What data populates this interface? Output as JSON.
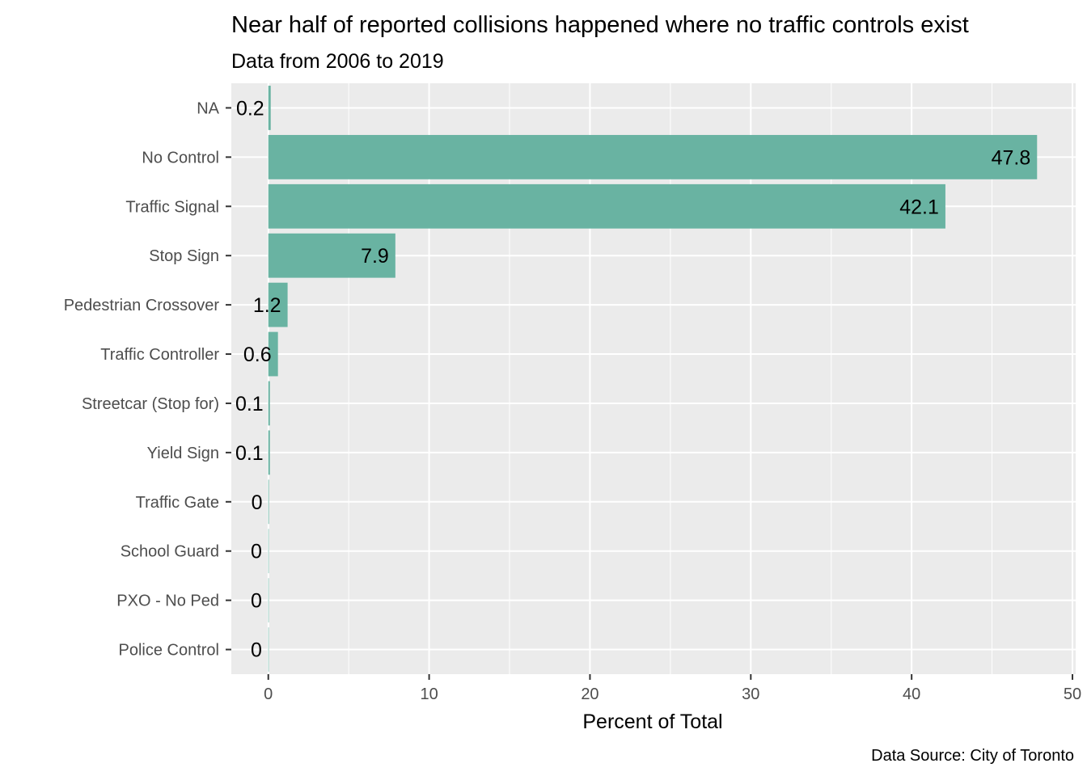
{
  "chart_data": {
    "type": "bar",
    "orientation": "horizontal",
    "title": "Near half of reported collisions happened where no traffic controls exist",
    "subtitle": "Data from 2006 to 2019",
    "caption": "Data Source: City of Toronto",
    "xlabel": "Percent of Total",
    "ylabel": "",
    "categories": [
      "NA",
      "No Control",
      "Traffic Signal",
      "Stop Sign",
      "Pedestrian Crossover",
      "Traffic Controller",
      "Streetcar (Stop for)",
      "Yield Sign",
      "Traffic Gate",
      "School Guard",
      "PXO - No Ped",
      "Police Control"
    ],
    "values": [
      0.15,
      47.8,
      42.1,
      7.9,
      1.2,
      0.6,
      0.1,
      0.1,
      0.04,
      0.01,
      0.01,
      0.01
    ],
    "labels": [
      "0.2",
      "47.8",
      "42.1",
      "7.9",
      "1.2",
      "0.6",
      "0.1",
      "0.1",
      "0",
      "0",
      "0",
      "0"
    ],
    "xlim": [
      -2.3,
      50.2
    ],
    "xticks": [
      0,
      10,
      20,
      30,
      40,
      50
    ],
    "xtick_labels": [
      "0",
      "10",
      "20",
      "30",
      "40",
      "50"
    ],
    "grid": true,
    "legend": "none",
    "colors": {
      "bar": "#69b3a2",
      "panel": "#ebebeb",
      "grid": "#ffffff",
      "tick_text": "#4d4d4d",
      "tick_mark": "#333333"
    }
  }
}
